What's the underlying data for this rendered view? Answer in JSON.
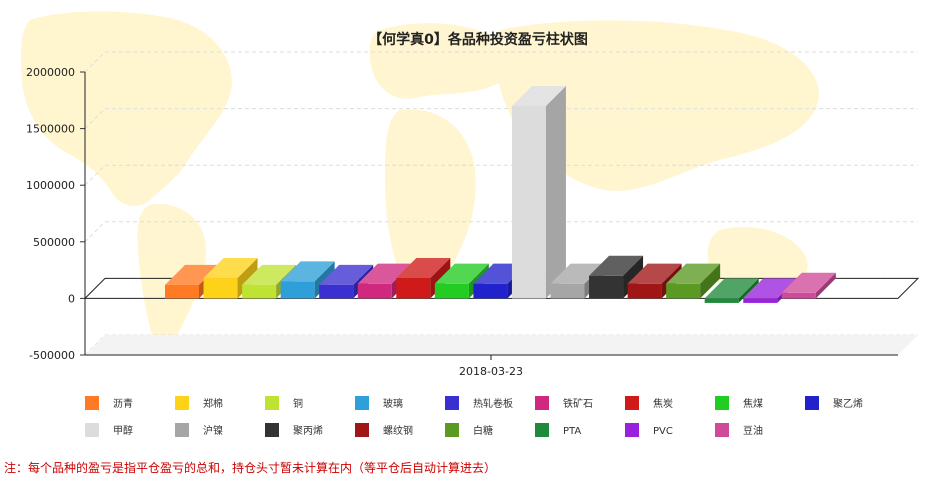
{
  "chart_data": {
    "type": "bar",
    "title": "【何学真0】各品种投资盈亏柱状图",
    "categories": [
      "2018-03-23"
    ],
    "y_ticks": [
      "2000000",
      "1500000",
      "1000000",
      "500000",
      "0",
      "-500000"
    ],
    "ylim": [
      -500000,
      2000000
    ],
    "grid": true,
    "legend_position": "bottom",
    "series": [
      {
        "name": "沥青",
        "value": 120000,
        "color": "#ff7a22"
      },
      {
        "name": "郑棉",
        "value": 180000,
        "color": "#ffd21a"
      },
      {
        "name": "铜",
        "value": 120000,
        "color": "#bfe332"
      },
      {
        "name": "玻璃",
        "value": 150000,
        "color": "#2e9fd8"
      },
      {
        "name": "热轧卷板",
        "value": 120000,
        "color": "#3a2fd0"
      },
      {
        "name": "铁矿石",
        "value": 130000,
        "color": "#d0287f"
      },
      {
        "name": "焦炭",
        "value": 180000,
        "color": "#d01a1a"
      },
      {
        "name": "焦煤",
        "value": 130000,
        "color": "#22cc22"
      },
      {
        "name": "聚乙烯",
        "value": 130000,
        "color": "#2222cc"
      },
      {
        "name": "甲醇",
        "value": 1700000,
        "color": "#dcdcdc"
      },
      {
        "name": "沪镍",
        "value": 130000,
        "color": "#a6a6a6"
      },
      {
        "name": "聚丙烯",
        "value": 200000,
        "color": "#333333"
      },
      {
        "name": "螺纹钢",
        "value": 130000,
        "color": "#a01515"
      },
      {
        "name": "白糖",
        "value": 130000,
        "color": "#5a9a22"
      },
      {
        "name": "PTA",
        "value": -40000,
        "color": "#1f8a3a"
      },
      {
        "name": "PVC",
        "value": -40000,
        "color": "#9a22dd"
      },
      {
        "name": "豆油",
        "value": 50000,
        "color": "#d04a9a"
      }
    ]
  },
  "footnote": "注：每个品种的盈亏是指平仓盈亏的总和，持仓头寸暂未计算在内（等平仓后自动计算进去）"
}
